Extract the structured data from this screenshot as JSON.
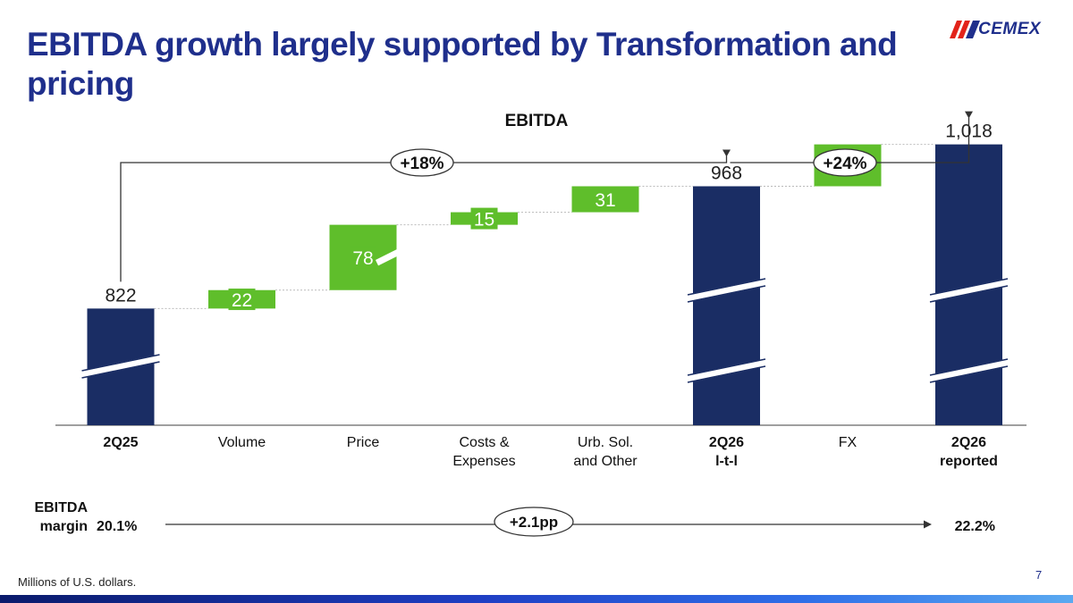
{
  "header": {
    "title": "EBITDA growth largely supported by Transformation and pricing",
    "logo_text": "CEMEX"
  },
  "colors": {
    "total": "#1a2d64",
    "increase": "#5fbe2b",
    "title": "#1f2f8c"
  },
  "chart_data": {
    "type": "waterfall",
    "title": "EBITDA",
    "categories": [
      "2Q25",
      "Volume",
      "Price",
      "Costs & Expenses",
      "Urb. Sol. and Other",
      "2Q26 l-t-l",
      "FX",
      "2Q26 reported"
    ],
    "category_lines": [
      [
        "2Q25"
      ],
      [
        "Volume"
      ],
      [
        "Price"
      ],
      [
        "Costs &",
        "Expenses"
      ],
      [
        "Urb. Sol.",
        "and Other"
      ],
      [
        "2Q26",
        "l-t-l"
      ],
      [
        "FX"
      ],
      [
        "2Q26",
        "reported"
      ]
    ],
    "bold_categories": [
      "2Q25",
      "2Q26 l-t-l",
      "2Q26 reported"
    ],
    "steps": [
      {
        "category": "2Q25",
        "kind": "total",
        "value": 822,
        "label": "822"
      },
      {
        "category": "Volume",
        "kind": "increase",
        "value": 22,
        "label": "22"
      },
      {
        "category": "Price",
        "kind": "increase",
        "value": 78,
        "label": "78"
      },
      {
        "category": "Costs & Expenses",
        "kind": "increase",
        "value": 15,
        "label": "15"
      },
      {
        "category": "Urb. Sol. and Other",
        "kind": "increase",
        "value": 31,
        "label": "31"
      },
      {
        "category": "2Q26 l-t-l",
        "kind": "total",
        "value": 968,
        "label": "968"
      },
      {
        "category": "FX",
        "kind": "increase",
        "value": 50,
        "label": "50"
      },
      {
        "category": "2Q26 reported",
        "kind": "total",
        "value": 1018,
        "label": "1,018"
      }
    ],
    "growth_annotations": [
      {
        "from": "2Q25",
        "to": "2Q26 l-t-l",
        "label": "+18%"
      },
      {
        "from": "2Q26 l-t-l",
        "to": "2Q26 reported",
        "label": "+24%"
      }
    ],
    "axis_break": true
  },
  "margin_row": {
    "label_line1": "EBITDA",
    "label_line2": "margin",
    "start_value": "20.1%",
    "change": "+2.1pp",
    "end_value": "22.2%"
  },
  "footer": {
    "footnote": "Millions of U.S. dollars.",
    "page_number": "7"
  }
}
